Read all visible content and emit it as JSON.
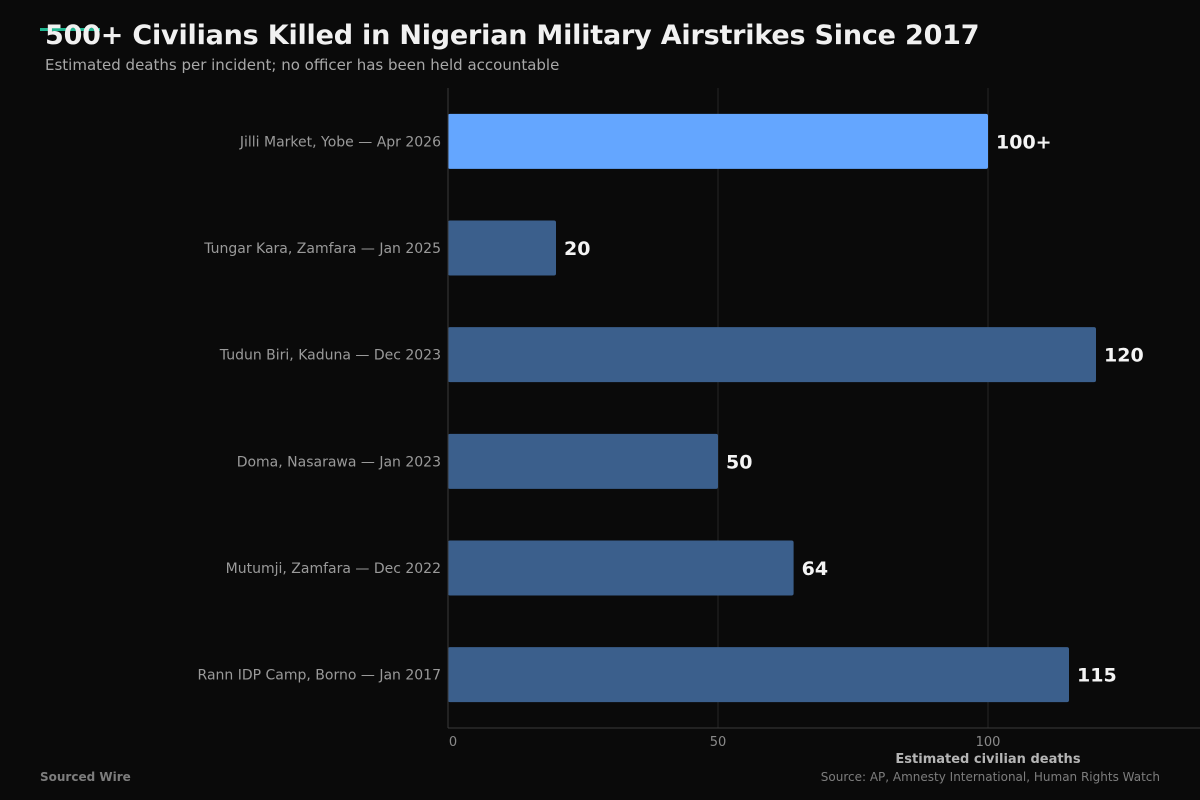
{
  "brand": "Sourced Wire",
  "source": "Source: AP, Amnesty International, Human Rights Watch",
  "colors": {
    "highlight": "#64a6ff",
    "bar": "#3b5f8c",
    "accent": "#1fb58f",
    "grid": "#262626",
    "axis": "#3a3a3a"
  },
  "chart_data": {
    "type": "bar",
    "orientation": "horizontal",
    "title": "500+ Civilians Killed in Nigerian Military Airstrikes Since 2017",
    "subtitle": "Estimated deaths per incident; no officer has been held accountable",
    "xlabel": "Estimated civilian deaths",
    "xlim": [
      0,
      140
    ],
    "xticks": [
      0,
      50,
      100
    ],
    "grid": true,
    "categories": [
      "Jilli Market, Yobe — Apr 2026",
      "Tungar Kara, Zamfara — Jan 2025",
      "Tudun Biri, Kaduna — Dec 2023",
      "Doma, Nasarawa — Jan 2023",
      "Mutumji, Zamfara — Dec 2022",
      "Rann IDP Camp, Borno — Jan 2017"
    ],
    "values": [
      100,
      20,
      120,
      50,
      64,
      115
    ],
    "value_labels": [
      "100+",
      "20",
      "120",
      "50",
      "64",
      "115"
    ],
    "highlighted_index": 0
  }
}
